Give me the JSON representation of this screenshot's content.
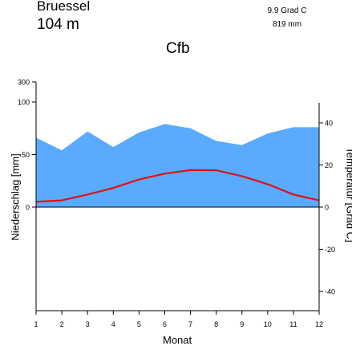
{
  "header": {
    "station": "Bruessel",
    "elevation": "104  m",
    "mean_temperature": "9.9 Grad C",
    "annual_precipitation": "819 mm",
    "climate_class": "Cfb"
  },
  "chart_data": {
    "type": "area",
    "title": "Bruessel",
    "xlabel": "Monat",
    "ylabel_left": "Niederschlag [mm]",
    "ylabel_right": "Temperatur [Grad C]",
    "x": [
      1,
      2,
      3,
      4,
      5,
      6,
      7,
      8,
      9,
      10,
      11,
      12
    ],
    "x_ticks": [
      "1",
      "2",
      "3",
      "4",
      "5",
      "6",
      "7",
      "8",
      "9",
      "10",
      "11",
      "12"
    ],
    "precip_ticks": [
      "0",
      "50",
      "100",
      "300"
    ],
    "temp_ticks": [
      "-40",
      "-20",
      "0",
      "20",
      "40"
    ],
    "temp_ylim": [
      -50,
      50
    ],
    "series": [
      {
        "name": "Niederschlag",
        "unit": "mm",
        "color": "#5aaaff",
        "values": [
          66,
          54,
          72,
          57,
          71,
          79,
          75,
          63,
          59,
          70,
          76,
          76
        ]
      },
      {
        "name": "Temperatur",
        "unit": "Grad C",
        "color": "#e01010",
        "values": [
          2.5,
          3.2,
          6.0,
          9.1,
          13.1,
          15.9,
          17.6,
          17.5,
          14.7,
          10.9,
          6.0,
          3.2
        ]
      }
    ],
    "grid": false,
    "legend": "none"
  }
}
